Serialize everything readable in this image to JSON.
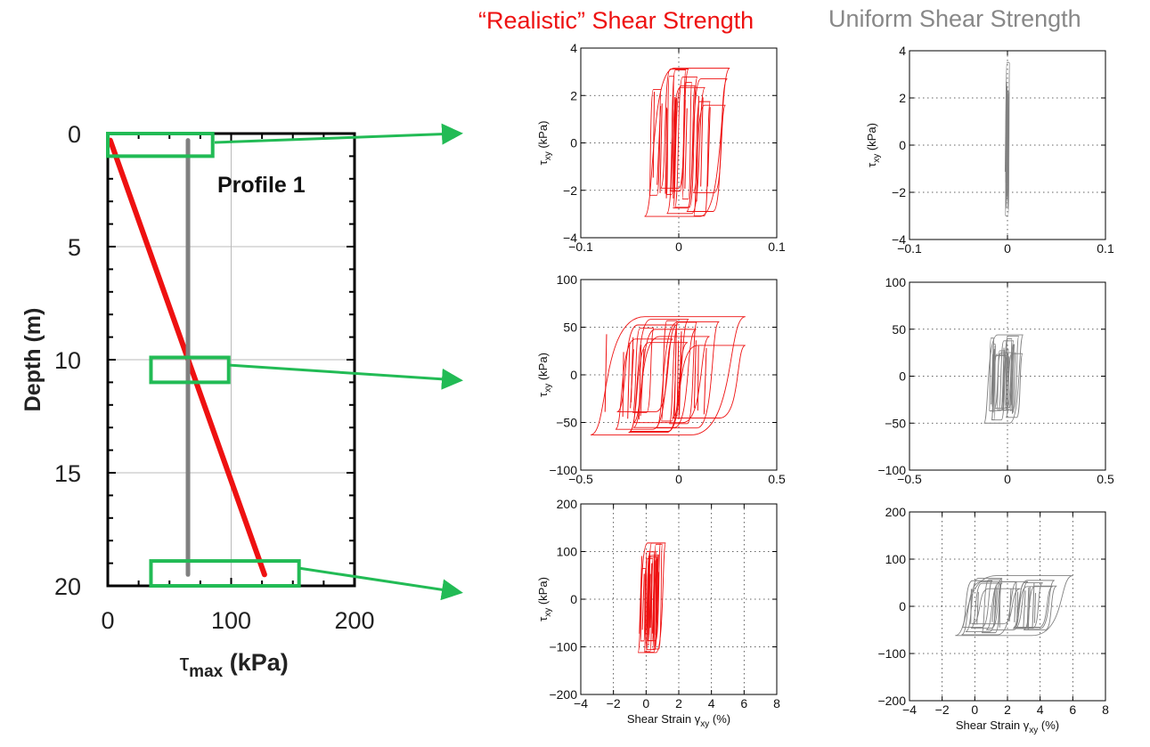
{
  "titles": {
    "realistic": "“Realistic” Shear Strength",
    "uniform": "Uniform Shear Strength"
  },
  "colors": {
    "realistic": "#ee1111",
    "uniform": "#808080",
    "callout": "#22bb55",
    "profile_uniform": "#808080"
  },
  "chart_data": [
    {
      "id": "profile",
      "type": "line",
      "xlabel": "τmax (kPa)",
      "ylabel": "Depth (m)",
      "xlim": [
        0,
        200
      ],
      "ylim": [
        20,
        0
      ],
      "xticks": [
        0,
        100,
        200
      ],
      "yticks": [
        0,
        5,
        10,
        15,
        20
      ],
      "grid": true,
      "annotation": "Profile 1",
      "series": [
        {
          "points": [
            [
              2,
              0.3
            ],
            [
              127,
              19.5
            ]
          ],
          "color": "#ee1111"
        },
        {
          "points": [
            [
              65,
              0.3
            ],
            [
              65,
              19.5
            ]
          ],
          "color": "#808080"
        }
      ],
      "callouts": [
        {
          "x": [
            0,
            85
          ],
          "depth": [
            0,
            1
          ]
        },
        {
          "x": [
            35,
            98
          ],
          "depth": [
            9.9,
            11
          ]
        },
        {
          "x": [
            35,
            155
          ],
          "depth": [
            18.9,
            20
          ]
        }
      ]
    },
    {
      "id": "realistic-0m",
      "type": "line",
      "xlabel": "",
      "ylabel": "τxy (kPa)",
      "xlim": [
        -0.1,
        0.1
      ],
      "ylim": [
        -4,
        4
      ],
      "xticks": [
        -0.1,
        0,
        0.1
      ],
      "xtick_labels": [
        "−0.1",
        "0",
        "0.1"
      ],
      "yticks": [
        -4,
        -2,
        0,
        2,
        4
      ],
      "ytick_labels": [
        "−4",
        "−2",
        "0",
        "2",
        "4"
      ],
      "grid": "dotted",
      "loops": {
        "xmin": -0.035,
        "xmax": 0.052,
        "ymin": -3.1,
        "ymax": 3.15
      }
    },
    {
      "id": "uniform-0m",
      "type": "line",
      "xlabel": "",
      "ylabel": "τxy (kPa)",
      "xlim": [
        -0.1,
        0.1
      ],
      "ylim": [
        -4,
        4
      ],
      "xticks": [
        -0.1,
        0,
        0.1
      ],
      "xtick_labels": [
        "−0.1",
        "0",
        "0.1"
      ],
      "yticks": [
        -4,
        -2,
        0,
        2,
        4
      ],
      "ytick_labels": [
        "−4",
        "−2",
        "0",
        "2",
        "4"
      ],
      "grid": "dotted",
      "loops": {
        "xmin": -0.002,
        "xmax": 0.002,
        "ymin": -3.0,
        "ymax": 3.5
      }
    },
    {
      "id": "realistic-10m",
      "type": "line",
      "xlabel": "",
      "ylabel": "τxy (kPa)",
      "xlim": [
        -0.5,
        0.5
      ],
      "ylim": [
        -100,
        100
      ],
      "xticks": [
        -0.5,
        0,
        0.5
      ],
      "xtick_labels": [
        "−0.5",
        "0",
        "0.5"
      ],
      "yticks": [
        -100,
        -50,
        0,
        50,
        100
      ],
      "ytick_labels": [
        "−100",
        "−50",
        "0",
        "50",
        "100"
      ],
      "grid": "dotted",
      "loops": {
        "xmin": -0.45,
        "xmax": 0.34,
        "ymin": -63,
        "ymax": 61
      }
    },
    {
      "id": "uniform-10m",
      "type": "line",
      "xlabel": "",
      "ylabel": "",
      "xlim": [
        -0.5,
        0.5
      ],
      "ylim": [
        -100,
        100
      ],
      "xticks": [
        -0.5,
        0,
        0.5
      ],
      "xtick_labels": [
        "−0.5",
        "0",
        "0.5"
      ],
      "yticks": [
        -100,
        -50,
        0,
        50,
        100
      ],
      "ytick_labels": [
        "−100",
        "−50",
        "0",
        "50",
        "100"
      ],
      "grid": "dotted",
      "loops": {
        "xmin": -0.12,
        "xmax": 0.08,
        "ymin": -50,
        "ymax": 44
      }
    },
    {
      "id": "realistic-20m",
      "type": "line",
      "xlabel": "Shear Strain γxy (%)",
      "ylabel": "τxy (kPa)",
      "xlim": [
        -4,
        8
      ],
      "ylim": [
        -200,
        200
      ],
      "xticks": [
        -4,
        -2,
        0,
        2,
        4,
        6,
        8
      ],
      "xtick_labels": [
        "−4",
        "−2",
        "0",
        "2",
        "4",
        "6",
        "8"
      ],
      "yticks": [
        -200,
        -100,
        0,
        100,
        200
      ],
      "ytick_labels": [
        "−200",
        "−100",
        "0",
        "100",
        "200"
      ],
      "grid": "dotted",
      "loops": {
        "xmin": -0.5,
        "xmax": 1.2,
        "ymin": -112,
        "ymax": 118
      }
    },
    {
      "id": "uniform-20m",
      "type": "line",
      "xlabel": "Shear Strain γxy (%)",
      "ylabel": "",
      "xlim": [
        -4,
        8
      ],
      "ylim": [
        -200,
        200
      ],
      "xticks": [
        -4,
        -2,
        0,
        2,
        4,
        6,
        8
      ],
      "xtick_labels": [
        "−4",
        "−2",
        "0",
        "2",
        "4",
        "6",
        "8"
      ],
      "yticks": [
        -200,
        -100,
        0,
        100,
        200
      ],
      "ytick_labels": [
        "−200",
        "−100",
        "0",
        "100",
        "200"
      ],
      "grid": "dotted",
      "loops": {
        "xmin": -1.2,
        "xmax": 6.0,
        "ymin": -62,
        "ymax": 65
      }
    }
  ]
}
